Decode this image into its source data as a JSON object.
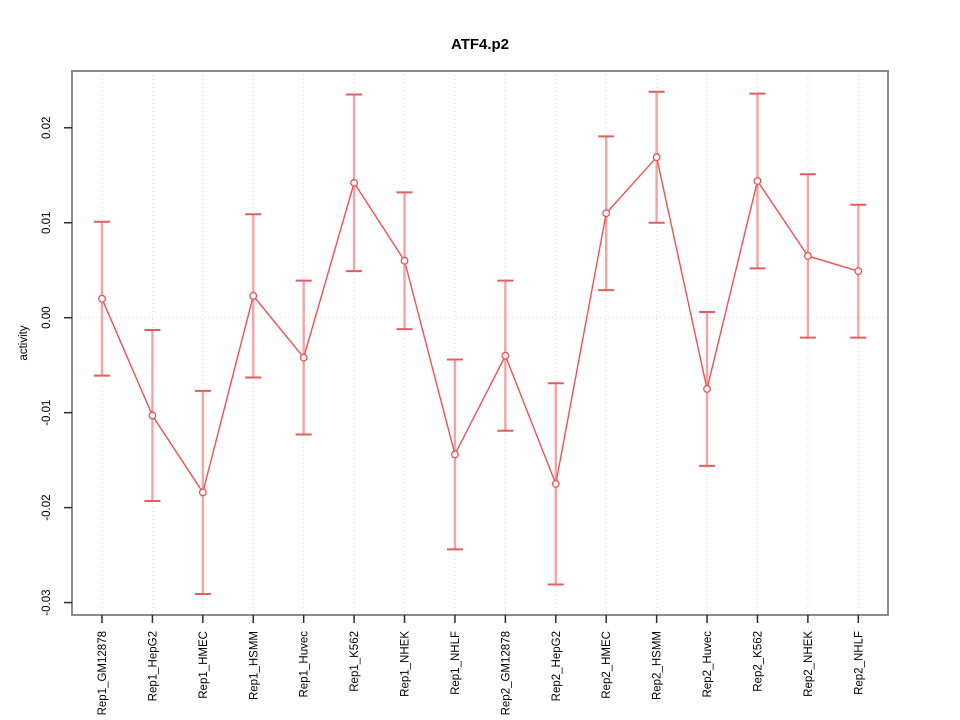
{
  "chart_data": {
    "type": "line",
    "title": "ATF4.p2",
    "xlabel": "",
    "ylabel": "activity",
    "marker": "open-circle",
    "categories": [
      "Rep1_GM12878",
      "Rep1_HepG2",
      "Rep1_HMEC",
      "Rep1_HSMM",
      "Rep1_Huvec",
      "Rep1_K562",
      "Rep1_NHEK",
      "Rep1_NHLF",
      "Rep2_GM12878",
      "Rep2_HepG2",
      "Rep2_HMEC",
      "Rep2_HSMM",
      "Rep2_Huvec",
      "Rep2_K562",
      "Rep2_NHEK",
      "Rep2_NHLF"
    ],
    "series": [
      {
        "name": "activity",
        "values": [
          0.002,
          -0.0103,
          -0.0184,
          0.0023,
          -0.0042,
          0.0142,
          0.006,
          -0.0144,
          -0.004,
          -0.0175,
          0.011,
          0.0169,
          -0.0075,
          0.0144,
          0.0065,
          0.0049
        ],
        "errors": [
          0.0081,
          0.009,
          0.0107,
          0.0086,
          0.0081,
          0.0093,
          0.0072,
          0.01,
          0.0079,
          0.0106,
          0.0081,
          0.0069,
          0.0081,
          0.0092,
          0.0086,
          0.007
        ]
      }
    ],
    "yticks": [
      0.02,
      0.01,
      0.0,
      -0.01,
      -0.02,
      -0.03
    ],
    "ytick_labels": [
      "0.02",
      "0.01",
      "0.00",
      "-0.01",
      "-0.02",
      "-0.03"
    ],
    "ylim": [
      -0.0313,
      0.026
    ],
    "grid": {
      "vertical_dotted_per_category": true,
      "horizontal_dotted_at_zero": true
    },
    "legend": "none",
    "colors": {
      "line": "#f25050",
      "point_fill": "#ffffff",
      "error_bar_stem": "#f7a3a3",
      "error_bar_cap": "#e25d5d",
      "grid_line": "#d8d8d8",
      "axis_box": "#8a8a8a",
      "tick_mark": "#2b2b2b",
      "label_text": "#000000",
      "background": "#ffffff"
    }
  }
}
